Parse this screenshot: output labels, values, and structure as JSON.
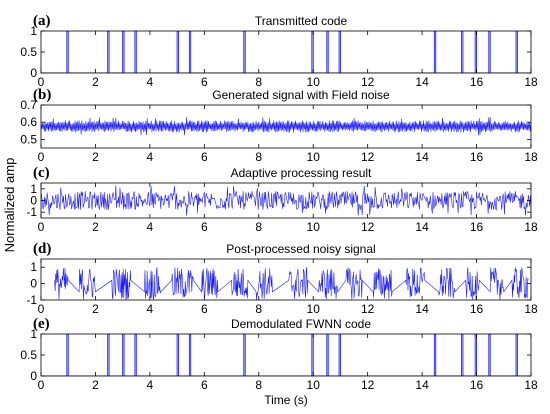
{
  "chart_data": [
    {
      "type": "line",
      "panel_label": "(a)",
      "title": "Transmitted code",
      "xlim": [
        0,
        18
      ],
      "ylim": [
        0,
        1
      ],
      "yticks": [
        0,
        0.5,
        1
      ],
      "ytick_labels": [
        "0",
        "0.5",
        "1"
      ],
      "xticks": [
        0,
        2,
        4,
        6,
        8,
        10,
        12,
        14,
        16,
        18
      ],
      "xtick_labels": [
        "0",
        "2",
        "4",
        "6",
        "8",
        "10",
        "12",
        "14",
        "16",
        "18"
      ],
      "series": [
        {
          "kind": "step",
          "x": [
            0.0,
            0.95,
            0.95,
            1.0,
            1.0,
            2.45,
            2.45,
            2.5,
            2.5,
            3.0,
            3.0,
            3.05,
            3.05,
            3.45,
            3.45,
            3.5,
            3.5,
            5.0,
            5.0,
            5.05,
            5.05,
            5.45,
            5.45,
            5.5,
            5.5,
            7.45,
            7.45,
            7.5,
            7.5,
            9.95,
            9.95,
            10.0,
            10.0,
            10.5,
            10.5,
            10.55,
            10.55,
            10.95,
            10.95,
            11.0,
            11.0,
            14.45,
            14.45,
            14.5,
            14.5,
            15.45,
            15.45,
            15.5,
            15.5,
            15.95,
            15.95,
            16.0,
            16.0,
            16.45,
            16.45,
            16.5,
            16.5,
            17.45,
            17.45,
            17.5,
            17.5,
            18.0
          ],
          "y": [
            0,
            0,
            1,
            1,
            0,
            0,
            1,
            1,
            0,
            0,
            1,
            1,
            0,
            0,
            1,
            1,
            0,
            0,
            1,
            1,
            0,
            0,
            1,
            1,
            0,
            0,
            1,
            1,
            0,
            0,
            1,
            1,
            0,
            0,
            1,
            1,
            0,
            0,
            1,
            1,
            0,
            0,
            1,
            1,
            0,
            0,
            1,
            1,
            0,
            0,
            1,
            1,
            0,
            0,
            1,
            1,
            0,
            0,
            1,
            1,
            0,
            0
          ]
        }
      ]
    },
    {
      "type": "line",
      "panel_label": "(b)",
      "title": "Generated signal with Field noise",
      "xlim": [
        0,
        18
      ],
      "ylim": [
        0.45,
        0.7
      ],
      "yticks": [
        0.5,
        0.6,
        0.7
      ],
      "ytick_labels": [
        "0.5",
        "0.6",
        "0.7"
      ],
      "xticks": [
        0,
        2,
        4,
        6,
        8,
        10,
        12,
        14,
        16,
        18
      ],
      "xtick_labels": [
        "0",
        "2",
        "4",
        "6",
        "8",
        "10",
        "12",
        "14",
        "16",
        "18"
      ],
      "series": [
        {
          "kind": "noise_band",
          "x_range": [
            0,
            18
          ],
          "center": 0.575,
          "lower": 0.54,
          "upper": 0.61,
          "peak_low": 0.52,
          "peak_high": 0.63,
          "samples": 720
        }
      ]
    },
    {
      "type": "line",
      "panel_label": "(c)",
      "title": "Adaptive processing result",
      "xlim": [
        0,
        18
      ],
      "ylim": [
        -1.5,
        1.5
      ],
      "yticks": [
        -1,
        0,
        1
      ],
      "ytick_labels": [
        "-1",
        "0",
        "1"
      ],
      "xticks": [
        0,
        2,
        4,
        6,
        8,
        10,
        12,
        14,
        16,
        18
      ],
      "xtick_labels": [
        "0",
        "2",
        "4",
        "6",
        "8",
        "10",
        "12",
        "14",
        "16",
        "18"
      ],
      "series": [
        {
          "kind": "noise",
          "x_range": [
            0,
            18
          ],
          "center": 0.0,
          "amplitude": 0.8,
          "peak": 1.3,
          "samples": 720
        }
      ]
    },
    {
      "type": "line",
      "panel_label": "(d)",
      "title": "Post-processed noisy signal",
      "xlim": [
        0,
        18
      ],
      "ylim": [
        -1,
        1.5
      ],
      "yticks": [
        -1,
        0,
        1
      ],
      "ytick_labels": [
        "-1",
        "0",
        "1"
      ],
      "xticks": [
        0,
        2,
        4,
        6,
        8,
        10,
        12,
        14,
        16,
        18
      ],
      "xtick_labels": [
        "0",
        "2",
        "4",
        "6",
        "8",
        "10",
        "12",
        "14",
        "16",
        "18"
      ],
      "series": [
        {
          "kind": "bursts",
          "amplitude": 1.0,
          "bursts": [
            [
              0.5,
              1.0
            ],
            [
              1.4,
              2.0
            ],
            [
              2.6,
              3.3
            ],
            [
              3.8,
              4.4
            ],
            [
              4.8,
              5.6
            ],
            [
              5.9,
              6.5
            ],
            [
              7.0,
              7.6
            ],
            [
              7.9,
              8.5
            ],
            [
              9.1,
              9.8
            ],
            [
              10.2,
              10.9
            ],
            [
              11.2,
              11.8
            ],
            [
              12.2,
              12.9
            ],
            [
              13.4,
              14.1
            ],
            [
              14.6,
              15.2
            ],
            [
              15.6,
              16.1
            ],
            [
              16.5,
              17.0
            ],
            [
              17.3,
              17.9
            ]
          ]
        }
      ]
    },
    {
      "type": "line",
      "panel_label": "(e)",
      "title": "Demodulated FWNN code",
      "xlim": [
        0,
        18
      ],
      "ylim": [
        0,
        1
      ],
      "yticks": [
        0,
        0.5,
        1
      ],
      "ytick_labels": [
        "0",
        "0.5",
        "1"
      ],
      "xticks": [
        0,
        2,
        4,
        6,
        8,
        10,
        12,
        14,
        16,
        18
      ],
      "xtick_labels": [
        "0",
        "2",
        "4",
        "6",
        "8",
        "10",
        "12",
        "14",
        "16",
        "18"
      ],
      "xlabel": "Time (s)",
      "series": [
        {
          "kind": "step",
          "x": [
            0.0,
            0.95,
            0.95,
            1.0,
            1.0,
            2.45,
            2.45,
            2.5,
            2.5,
            3.0,
            3.0,
            3.05,
            3.05,
            3.45,
            3.45,
            3.5,
            3.5,
            5.0,
            5.0,
            5.05,
            5.05,
            5.45,
            5.45,
            5.5,
            5.5,
            7.45,
            7.45,
            7.5,
            7.5,
            9.95,
            9.95,
            10.0,
            10.0,
            10.5,
            10.5,
            10.55,
            10.55,
            10.95,
            10.95,
            11.0,
            11.0,
            14.45,
            14.45,
            14.5,
            14.5,
            15.45,
            15.45,
            15.5,
            15.5,
            15.95,
            15.95,
            16.0,
            16.0,
            16.45,
            16.45,
            16.5,
            16.5,
            17.45,
            17.45,
            17.5,
            17.5,
            18.0
          ],
          "y": [
            0,
            0,
            1,
            1,
            0,
            0,
            1,
            1,
            0,
            0,
            1,
            1,
            0,
            0,
            1,
            1,
            0,
            0,
            1,
            1,
            0,
            0,
            1,
            1,
            0,
            0,
            1,
            1,
            0,
            0,
            1,
            1,
            0,
            0,
            1,
            1,
            0,
            0,
            1,
            1,
            0,
            0,
            1,
            1,
            0,
            0,
            1,
            1,
            0,
            0,
            1,
            1,
            0,
            0,
            1,
            1,
            0,
            0,
            1,
            1,
            0,
            0
          ]
        }
      ]
    }
  ],
  "shared_ylabel": "Normalized amp",
  "colors": {
    "line": "#1a1aff",
    "axis": "#000000",
    "background": "#ffffff"
  }
}
